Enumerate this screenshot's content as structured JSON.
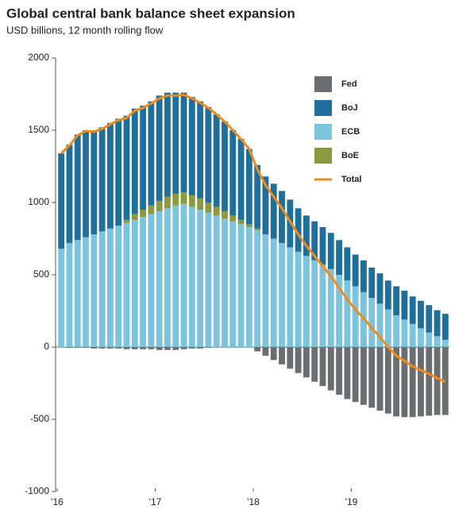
{
  "chart_data": {
    "type": "bar",
    "title": "Global central bank balance sheet expansion",
    "subtitle": "USD billions, 12 month rolling flow",
    "categories": [
      "'16",
      null,
      null,
      null,
      null,
      null,
      null,
      null,
      null,
      null,
      null,
      null,
      "'17",
      null,
      null,
      null,
      null,
      null,
      null,
      null,
      null,
      null,
      null,
      null,
      "'18",
      null,
      null,
      null,
      null,
      null,
      null,
      null,
      null,
      null,
      null,
      null,
      "'19",
      null,
      null,
      null,
      null,
      null,
      null,
      null,
      null,
      null,
      null,
      null
    ],
    "series": [
      {
        "name": "Fed",
        "color": "#6b6e70",
        "values": [
          0,
          -5,
          -5,
          -5,
          -10,
          -10,
          -10,
          -10,
          -15,
          -15,
          -15,
          -15,
          -20,
          -20,
          -20,
          -15,
          -10,
          -10,
          -5,
          0,
          0,
          0,
          0,
          0,
          -30,
          -60,
          -90,
          -120,
          -150,
          -180,
          -210,
          -240,
          -270,
          -300,
          -330,
          -360,
          -380,
          -400,
          -420,
          -440,
          -460,
          -480,
          -485,
          -485,
          -480,
          -475,
          -470,
          -470
        ]
      },
      {
        "name": "BoJ",
        "color": "#1f6f9b",
        "values": [
          660,
          680,
          730,
          740,
          720,
          720,
          730,
          740,
          720,
          730,
          720,
          720,
          730,
          720,
          700,
          690,
          680,
          670,
          660,
          640,
          620,
          590,
          560,
          520,
          440,
          400,
          380,
          360,
          330,
          300,
          280,
          270,
          260,
          250,
          240,
          230,
          220,
          220,
          210,
          210,
          200,
          200,
          200,
          190,
          190,
          190,
          180,
          180
        ]
      },
      {
        "name": "ECB",
        "color": "#7cc4de",
        "values": [
          680,
          720,
          740,
          760,
          780,
          800,
          820,
          840,
          860,
          880,
          900,
          920,
          940,
          960,
          980,
          990,
          970,
          950,
          930,
          910,
          890,
          870,
          850,
          830,
          810,
          780,
          750,
          720,
          690,
          660,
          630,
          600,
          570,
          540,
          500,
          460,
          420,
          380,
          340,
          300,
          260,
          220,
          190,
          160,
          130,
          100,
          75,
          50
        ]
      },
      {
        "name": "BoE",
        "color": "#8b9a3e",
        "values": [
          0,
          0,
          0,
          0,
          0,
          0,
          0,
          0,
          20,
          40,
          50,
          60,
          70,
          80,
          80,
          80,
          80,
          80,
          70,
          60,
          50,
          40,
          30,
          20,
          10,
          0,
          0,
          0,
          0,
          0,
          0,
          0,
          0,
          0,
          0,
          0,
          0,
          0,
          0,
          0,
          0,
          0,
          0,
          0,
          0,
          0,
          0,
          0
        ]
      },
      {
        "name": "Total",
        "type": "line",
        "color": "#f08c1e",
        "values": [
          1340,
          1395,
          1465,
          1495,
          1490,
          1510,
          1540,
          1570,
          1585,
          1635,
          1655,
          1685,
          1720,
          1740,
          1740,
          1745,
          1720,
          1690,
          1655,
          1610,
          1560,
          1500,
          1440,
          1370,
          1230,
          1120,
          1040,
          960,
          870,
          780,
          700,
          630,
          560,
          490,
          410,
          330,
          260,
          200,
          130,
          70,
          0,
          -60,
          -95,
          -135,
          -160,
          -185,
          -215,
          -240
        ]
      }
    ],
    "ylim": [
      -1000,
      2000
    ],
    "yticks": [
      -1000,
      -500,
      0,
      500,
      1000,
      1500,
      2000
    ]
  }
}
